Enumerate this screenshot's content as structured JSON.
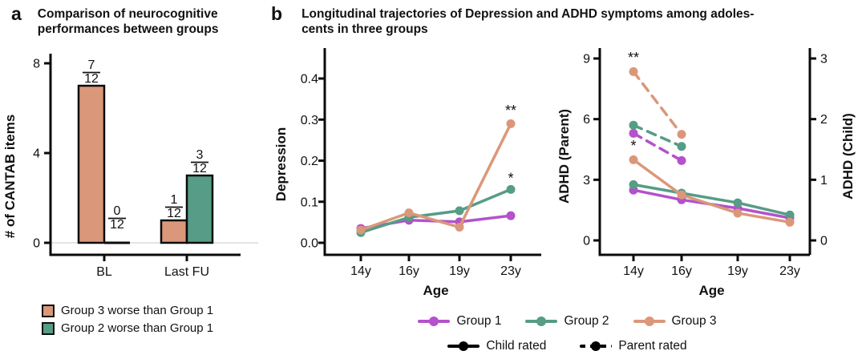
{
  "colors": {
    "group1": "#B451CB",
    "group2": "#569C86",
    "group3": "#DB977A",
    "axis": "#0b0b0b",
    "zero_gridline": "#e4e4e4"
  },
  "panel_a": {
    "label": "a",
    "title_line1": "Comparison of neurocognitive",
    "title_line2": "performances between groups",
    "legend": [
      {
        "label": "Group 3 worse than Group 1",
        "color": "#DB977A"
      },
      {
        "label": "Group 2 worse than Group 1",
        "color": "#569C86"
      }
    ]
  },
  "panel_b": {
    "label": "b",
    "title_line1": "Longitudinal trajectories of Depression and ADHD symptoms among adoles-",
    "title_line2": "cents in three groups",
    "legend_groups": [
      {
        "label": "Group 1",
        "color": "#B451CB"
      },
      {
        "label": "Group 2",
        "color": "#569C86"
      },
      {
        "label": "Group 3",
        "color": "#DB977A"
      }
    ],
    "legend_rating": [
      {
        "label": "Child rated",
        "style": "solid"
      },
      {
        "label": "Parent rated",
        "style": "dashed"
      }
    ]
  },
  "chart_data": [
    {
      "id": "cantab",
      "type": "bar",
      "title": "Comparison of neurocognitive performances between groups",
      "ylabel": "# of CANTAB items",
      "categories": [
        "BL",
        "Last FU"
      ],
      "yticks": [
        0,
        4,
        8
      ],
      "ylim": [
        0,
        8.8
      ],
      "series": [
        {
          "name": "Group 3 worse than Group 1",
          "color": "#DB977A",
          "values": [
            7,
            1
          ],
          "labels": [
            "7/12",
            "1/12"
          ]
        },
        {
          "name": "Group 2 worse than Group 1",
          "color": "#569C86",
          "values": [
            0,
            3
          ],
          "labels": [
            "0/12",
            "3/12"
          ]
        }
      ]
    },
    {
      "id": "depression",
      "type": "line",
      "xlabel": "Age",
      "ylabel": "Depression",
      "x_labels": [
        "14y",
        "16y",
        "19y",
        "23y"
      ],
      "yticks": [
        0,
        0.1,
        0.2,
        0.3,
        0.4
      ],
      "ytick_labels": [
        "0.0",
        "0.1",
        "0.2",
        "0.3",
        "0.4"
      ],
      "ylim": [
        0,
        0.46
      ],
      "series": [
        {
          "name": "Group 1",
          "color": "#B451CB",
          "style": "solid",
          "axis": "left",
          "values": [
            0.035,
            0.055,
            0.051,
            0.066
          ]
        },
        {
          "name": "Group 2",
          "color": "#569C86",
          "style": "solid",
          "axis": "left",
          "values": [
            0.025,
            0.062,
            0.078,
            0.13
          ]
        },
        {
          "name": "Group 3",
          "color": "#DB977A",
          "style": "solid",
          "axis": "left",
          "values": [
            0.031,
            0.073,
            0.038,
            0.29
          ]
        }
      ],
      "annotations": [
        {
          "text": "**",
          "x_index": 3,
          "y": 0.31
        },
        {
          "text": "*",
          "x_index": 3,
          "y": 0.145
        }
      ]
    },
    {
      "id": "adhd",
      "type": "line",
      "xlabel": "Age",
      "ylabel_left": "ADHD (Parent)",
      "ylabel_right": "ADHD (Child)",
      "x_labels": [
        "14y",
        "16y",
        "19y",
        "23y"
      ],
      "yticks_left": [
        0,
        3,
        6,
        9
      ],
      "yticks_right": [
        0,
        1,
        2,
        3
      ],
      "ylim_left": [
        0,
        9.6
      ],
      "ylim_right": [
        0,
        3.2
      ],
      "series": [
        {
          "name": "Group 1 child rated",
          "group": "Group 1",
          "rating": "Child rated",
          "color": "#B451CB",
          "style": "solid",
          "axis": "right",
          "values": [
            0.83,
            0.67,
            0.53,
            0.37
          ]
        },
        {
          "name": "Group 2 child rated",
          "group": "Group 2",
          "rating": "Child rated",
          "color": "#569C86",
          "style": "solid",
          "axis": "right",
          "values": [
            0.92,
            0.78,
            0.62,
            0.42
          ]
        },
        {
          "name": "Group 3 child rated",
          "group": "Group 3",
          "rating": "Child rated",
          "color": "#DB977A",
          "style": "solid",
          "axis": "right",
          "values": [
            1.33,
            0.75,
            0.45,
            0.3
          ]
        },
        {
          "name": "Group 1 parent rated",
          "group": "Group 1",
          "rating": "Parent rated",
          "color": "#B451CB",
          "style": "dashed",
          "axis": "left",
          "values": [
            5.3,
            3.95,
            null,
            null
          ]
        },
        {
          "name": "Group 2 parent rated",
          "group": "Group 2",
          "rating": "Parent rated",
          "color": "#569C86",
          "style": "dashed",
          "axis": "left",
          "values": [
            5.7,
            4.65,
            null,
            null
          ]
        },
        {
          "name": "Group 3 parent rated",
          "group": "Group 3",
          "rating": "Parent rated",
          "color": "#DB977A",
          "style": "dashed",
          "axis": "left",
          "values": [
            8.35,
            5.25,
            null,
            null
          ]
        }
      ],
      "annotations": [
        {
          "text": "**",
          "x_index": 0,
          "y": 8.8
        },
        {
          "text": "*",
          "x_index": 0,
          "y": 4.45
        }
      ]
    }
  ]
}
